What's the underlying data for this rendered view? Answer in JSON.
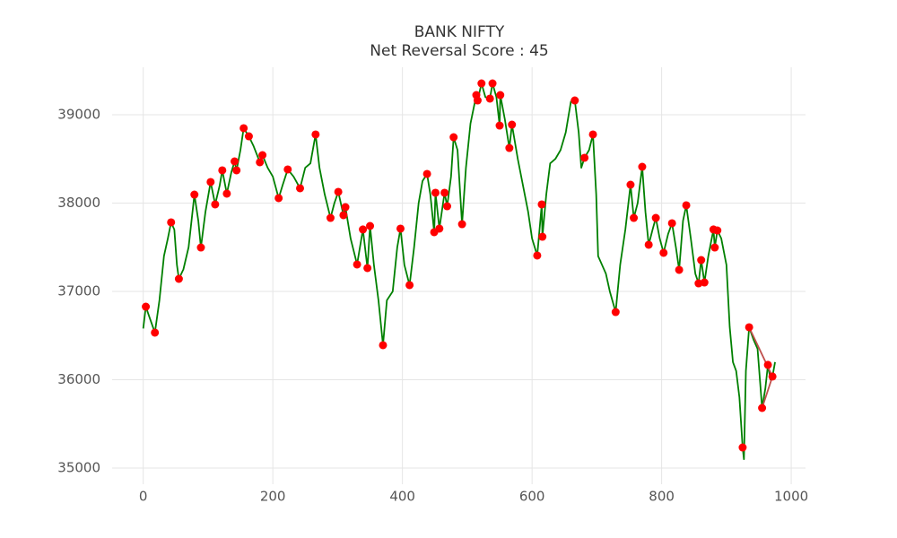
{
  "chart_data": {
    "type": "line",
    "title": "BANK NIFTY",
    "subtitle": "Net Reversal Score : 45",
    "xlim": [
      -48,
      1022
    ],
    "ylim": [
      34817,
      39538
    ],
    "xticks": [
      0,
      200,
      400,
      600,
      800,
      1000
    ],
    "yticks": [
      35000,
      36000,
      37000,
      38000,
      39000
    ],
    "grid": true,
    "series": [
      {
        "style": "line",
        "color": "#008000",
        "x": [
          0,
          4,
          10,
          18,
          25,
          32,
          38,
          43,
          48,
          52,
          55,
          62,
          70,
          79,
          85,
          89,
          96,
          104,
          111,
          118,
          122,
          129,
          136,
          141,
          144,
          150,
          155,
          163,
          170,
          180,
          184,
          192,
          200,
          209,
          215,
          223,
          232,
          242,
          250,
          258,
          266,
          272,
          280,
          289,
          295,
          301,
          309,
          312,
          320,
          330,
          339,
          346,
          350,
          356,
          363,
          370,
          376,
          385,
          392,
          397,
          403,
          411,
          418,
          425,
          431,
          438,
          443,
          449,
          451,
          457,
          465,
          469,
          475,
          479,
          485,
          492,
          498,
          505,
          514,
          516,
          522,
          528,
          535,
          539,
          545,
          550,
          551,
          558,
          565,
          569,
          578,
          586,
          594,
          600,
          608,
          615,
          616,
          622,
          628,
          636,
          644,
          652,
          660,
          666,
          672,
          676,
          681,
          688,
          694,
          699,
          702,
          708,
          714,
          720,
          729,
          736,
          744,
          752,
          757,
          763,
          770,
          775,
          780,
          786,
          791,
          797,
          803,
          810,
          816,
          822,
          827,
          833,
          838,
          845,
          852,
          857,
          861,
          866,
          872,
          880,
          882,
          886,
          892,
          900,
          905,
          910,
          915,
          920,
          925,
          927,
          930,
          935,
          942,
          948,
          955,
          960,
          964,
          968,
          971,
          975
        ],
        "values": [
          36580,
          36827,
          36700,
          36533,
          36900,
          37400,
          37600,
          37782,
          37700,
          37300,
          37142,
          37250,
          37500,
          38096,
          37800,
          37497,
          37900,
          38239,
          37985,
          38200,
          38371,
          38107,
          38350,
          38472,
          38371,
          38600,
          38848,
          38756,
          38650,
          38462,
          38543,
          38400,
          38300,
          38056,
          38200,
          38381,
          38300,
          38168,
          38400,
          38450,
          38777,
          38400,
          38100,
          37832,
          38000,
          38127,
          37863,
          37954,
          37600,
          37305,
          37701,
          37264,
          37741,
          37300,
          36900,
          36391,
          36900,
          37000,
          37500,
          37711,
          37300,
          37071,
          37500,
          38000,
          38250,
          38330,
          38100,
          37670,
          38117,
          37711,
          38117,
          37964,
          38300,
          38746,
          38600,
          37761,
          38400,
          38900,
          39223,
          39162,
          39355,
          39200,
          39183,
          39355,
          39200,
          38878,
          39223,
          38950,
          38624,
          38888,
          38500,
          38200,
          37900,
          37600,
          37406,
          37985,
          37619,
          38100,
          38450,
          38500,
          38600,
          38800,
          39150,
          39162,
          38800,
          38400,
          38513,
          38600,
          38777,
          38100,
          37400,
          37300,
          37200,
          37000,
          36766,
          37300,
          37700,
          38208,
          37832,
          38000,
          38411,
          37900,
          37528,
          37700,
          37832,
          37600,
          37437,
          37650,
          37772,
          37500,
          37244,
          37800,
          37975,
          37600,
          37200,
          37091,
          37355,
          37101,
          37400,
          37701,
          37497,
          37690,
          37600,
          37300,
          36600,
          36200,
          36100,
          35800,
          35233,
          35100,
          36100,
          36594,
          36450,
          36350,
          35680,
          35900,
          36168,
          36000,
          36036,
          36200
        ]
      },
      {
        "style": "line",
        "color": "#c0504d",
        "x": [
          935,
          971,
          955
        ],
        "values": [
          36594,
          36036,
          35680
        ]
      },
      {
        "style": "marker",
        "color": "#ff0000",
        "x": [
          4,
          18,
          43,
          55,
          79,
          89,
          104,
          111,
          122,
          129,
          141,
          144,
          155,
          163,
          180,
          184,
          209,
          223,
          242,
          266,
          289,
          301,
          309,
          312,
          330,
          339,
          346,
          350,
          370,
          397,
          411,
          438,
          449,
          451,
          457,
          465,
          469,
          479,
          492,
          514,
          516,
          522,
          535,
          539,
          551,
          550,
          565,
          569,
          608,
          615,
          616,
          666,
          681,
          694,
          729,
          752,
          757,
          770,
          780,
          791,
          803,
          816,
          827,
          838,
          857,
          861,
          866,
          880,
          882,
          886,
          925,
          935,
          955,
          964,
          971
        ],
        "values": [
          36827,
          36533,
          37782,
          37142,
          38096,
          37497,
          38239,
          37985,
          38371,
          38107,
          38472,
          38371,
          38848,
          38756,
          38462,
          38543,
          38056,
          38381,
          38168,
          38777,
          37832,
          38127,
          37863,
          37954,
          37305,
          37701,
          37264,
          37741,
          36391,
          37711,
          37071,
          38330,
          37670,
          38117,
          37711,
          38117,
          37964,
          38746,
          37761,
          39223,
          39162,
          39355,
          39183,
          39355,
          39223,
          38878,
          38624,
          38888,
          37406,
          37985,
          37619,
          39162,
          38513,
          38777,
          36766,
          38208,
          37832,
          38411,
          37528,
          37832,
          37437,
          37772,
          37244,
          37975,
          37091,
          37355,
          37101,
          37701,
          37497,
          37690,
          35233,
          36594,
          35680,
          36168,
          36036
        ]
      }
    ]
  }
}
